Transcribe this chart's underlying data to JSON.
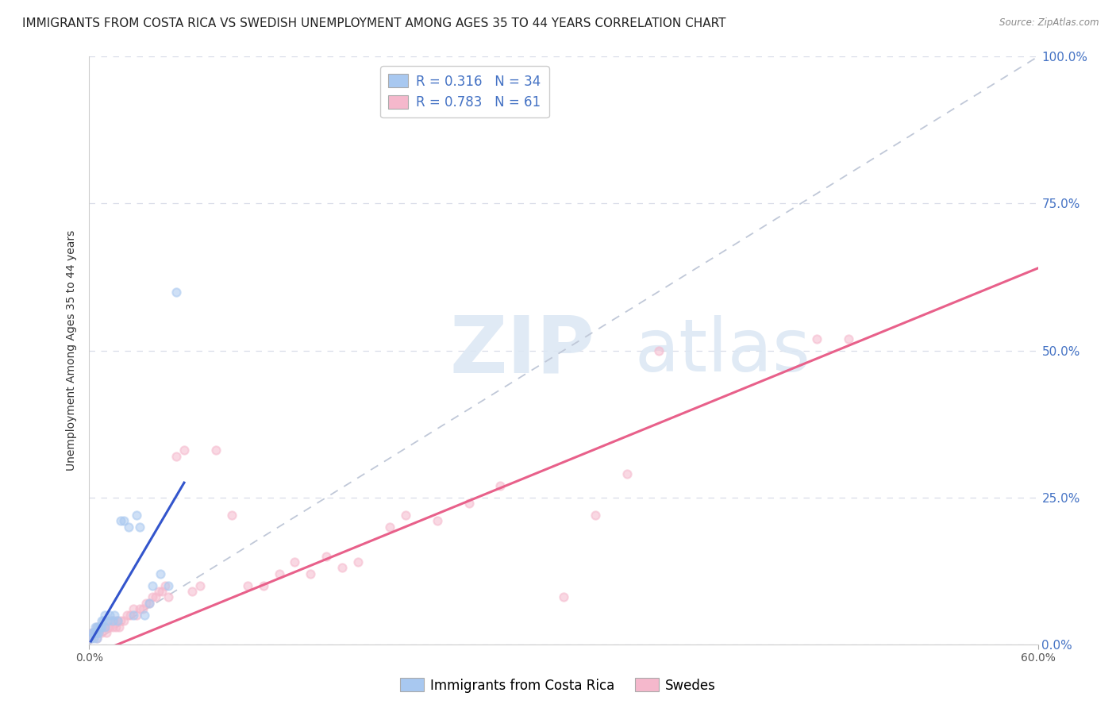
{
  "title": "IMMIGRANTS FROM COSTA RICA VS SWEDISH UNEMPLOYMENT AMONG AGES 35 TO 44 YEARS CORRELATION CHART",
  "source": "Source: ZipAtlas.com",
  "ylabel": "Unemployment Among Ages 35 to 44 years",
  "xlim": [
    0.0,
    0.6
  ],
  "ylim": [
    0.0,
    1.0
  ],
  "xtick_pos": [
    0.0,
    0.6
  ],
  "xtick_labels": [
    "0.0%",
    "60.0%"
  ],
  "yticks": [
    0.0,
    0.25,
    0.5,
    0.75,
    1.0
  ],
  "ytick_labels": [
    "0.0%",
    "25.0%",
    "50.0%",
    "75.0%",
    "100.0%"
  ],
  "background_color": "#ffffff",
  "legend_r1": "0.316",
  "legend_n1": "34",
  "legend_r2": "0.783",
  "legend_n2": "61",
  "legend_label1": "Immigrants from Costa Rica",
  "legend_label2": "Swedes",
  "blue_scatter_x": [
    0.001,
    0.002,
    0.003,
    0.003,
    0.004,
    0.004,
    0.005,
    0.005,
    0.005,
    0.006,
    0.006,
    0.007,
    0.008,
    0.008,
    0.009,
    0.01,
    0.01,
    0.012,
    0.013,
    0.015,
    0.016,
    0.018,
    0.02,
    0.022,
    0.025,
    0.028,
    0.03,
    0.032,
    0.035,
    0.038,
    0.04,
    0.045,
    0.05,
    0.055
  ],
  "blue_scatter_y": [
    0.01,
    0.02,
    0.01,
    0.02,
    0.02,
    0.03,
    0.01,
    0.02,
    0.03,
    0.02,
    0.03,
    0.03,
    0.03,
    0.04,
    0.04,
    0.03,
    0.05,
    0.04,
    0.05,
    0.04,
    0.05,
    0.04,
    0.21,
    0.21,
    0.2,
    0.05,
    0.22,
    0.2,
    0.05,
    0.07,
    0.1,
    0.12,
    0.1,
    0.6
  ],
  "pink_scatter_x": [
    0.001,
    0.002,
    0.003,
    0.004,
    0.005,
    0.005,
    0.006,
    0.007,
    0.008,
    0.009,
    0.01,
    0.011,
    0.012,
    0.013,
    0.014,
    0.015,
    0.016,
    0.017,
    0.018,
    0.019,
    0.02,
    0.022,
    0.024,
    0.026,
    0.028,
    0.03,
    0.032,
    0.034,
    0.036,
    0.038,
    0.04,
    0.042,
    0.044,
    0.046,
    0.048,
    0.05,
    0.055,
    0.06,
    0.065,
    0.07,
    0.08,
    0.09,
    0.1,
    0.11,
    0.12,
    0.13,
    0.14,
    0.15,
    0.16,
    0.17,
    0.19,
    0.2,
    0.22,
    0.24,
    0.26,
    0.3,
    0.32,
    0.34,
    0.36,
    0.46,
    0.48
  ],
  "pink_scatter_y": [
    0.01,
    0.02,
    0.02,
    0.02,
    0.01,
    0.03,
    0.02,
    0.03,
    0.02,
    0.03,
    0.03,
    0.02,
    0.03,
    0.03,
    0.04,
    0.03,
    0.04,
    0.03,
    0.04,
    0.03,
    0.04,
    0.04,
    0.05,
    0.05,
    0.06,
    0.05,
    0.06,
    0.06,
    0.07,
    0.07,
    0.08,
    0.08,
    0.09,
    0.09,
    0.1,
    0.08,
    0.32,
    0.33,
    0.09,
    0.1,
    0.33,
    0.22,
    0.1,
    0.1,
    0.12,
    0.14,
    0.12,
    0.15,
    0.13,
    0.14,
    0.2,
    0.22,
    0.21,
    0.24,
    0.27,
    0.08,
    0.22,
    0.29,
    0.5,
    0.52,
    0.52
  ],
  "blue_line_x": [
    0.001,
    0.06
  ],
  "blue_line_y": [
    0.005,
    0.275
  ],
  "pink_line_x": [
    0.0,
    0.6
  ],
  "pink_line_y": [
    -0.02,
    0.64
  ],
  "diag_line_x": [
    0.0,
    0.6
  ],
  "diag_line_y": [
    0.0,
    1.0
  ],
  "blue_color": "#a8c8f0",
  "pink_color": "#f5b8cc",
  "blue_line_color": "#3355cc",
  "pink_line_color": "#e8608a",
  "diag_line_color": "#c0c8d8",
  "ylabel_color": "#333333",
  "ytick_color": "#4472c4",
  "title_fontsize": 11,
  "axis_fontsize": 10,
  "tick_fontsize": 10,
  "legend_fontsize": 12,
  "scatter_size": 55,
  "scatter_alpha": 0.55
}
